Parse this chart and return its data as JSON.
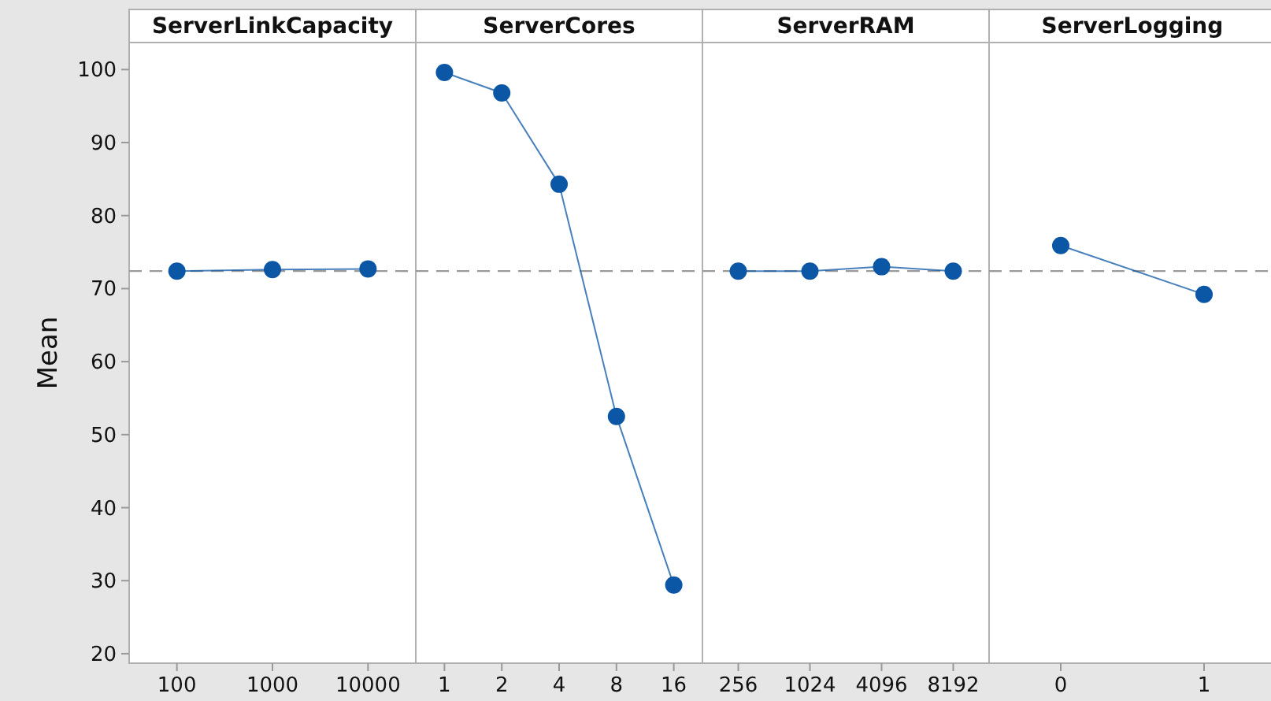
{
  "chart_data": [
    {
      "type": "line",
      "title": "ServerLinkCapacity",
      "ylabel": "Mean",
      "categories": [
        "100",
        "1000",
        "10000"
      ],
      "values": [
        72.4,
        72.6,
        72.7
      ],
      "color": "#0b56a5",
      "marker": "circle",
      "ylim": [
        18.7,
        103.7
      ],
      "yticks": [
        20,
        30,
        40,
        50,
        60,
        70,
        80,
        90,
        100
      ],
      "ref_lines": [
        {
          "axis": "y",
          "value": 72.4,
          "color": "#9a9a9a",
          "line_style": "dashed"
        }
      ]
    },
    {
      "type": "line",
      "title": "ServerCores",
      "categories": [
        "1",
        "2",
        "4",
        "8",
        "16"
      ],
      "values": [
        99.6,
        96.8,
        84.3,
        52.5,
        29.4
      ],
      "color": "#0b56a5",
      "marker": "circle",
      "ylim": [
        18.7,
        103.7
      ],
      "tick_labels": "x",
      "ref_lines": [
        {
          "axis": "y",
          "value": 72.4,
          "color": "#9a9a9a",
          "line_style": "dashed"
        }
      ]
    },
    {
      "type": "line",
      "title": "ServerRAM",
      "categories": [
        "256",
        "1024",
        "4096",
        "8192"
      ],
      "values": [
        72.4,
        72.4,
        73.0,
        72.4
      ],
      "color": "#0b56a5",
      "marker": "circle",
      "ylim": [
        18.7,
        103.7
      ],
      "tick_labels": "x",
      "ref_lines": [
        {
          "axis": "y",
          "value": 72.4,
          "color": "#9a9a9a",
          "line_style": "dashed"
        }
      ]
    },
    {
      "type": "line",
      "title": "ServerLogging",
      "categories": [
        "0",
        "1"
      ],
      "values": [
        75.9,
        69.2
      ],
      "color": "#0b56a5",
      "marker": "circle",
      "ylim": [
        18.7,
        103.7
      ],
      "tick_labels": "x",
      "ref_lines": [
        {
          "axis": "y",
          "value": 72.4,
          "color": "#9a9a9a",
          "line_style": "dashed"
        }
      ]
    }
  ]
}
